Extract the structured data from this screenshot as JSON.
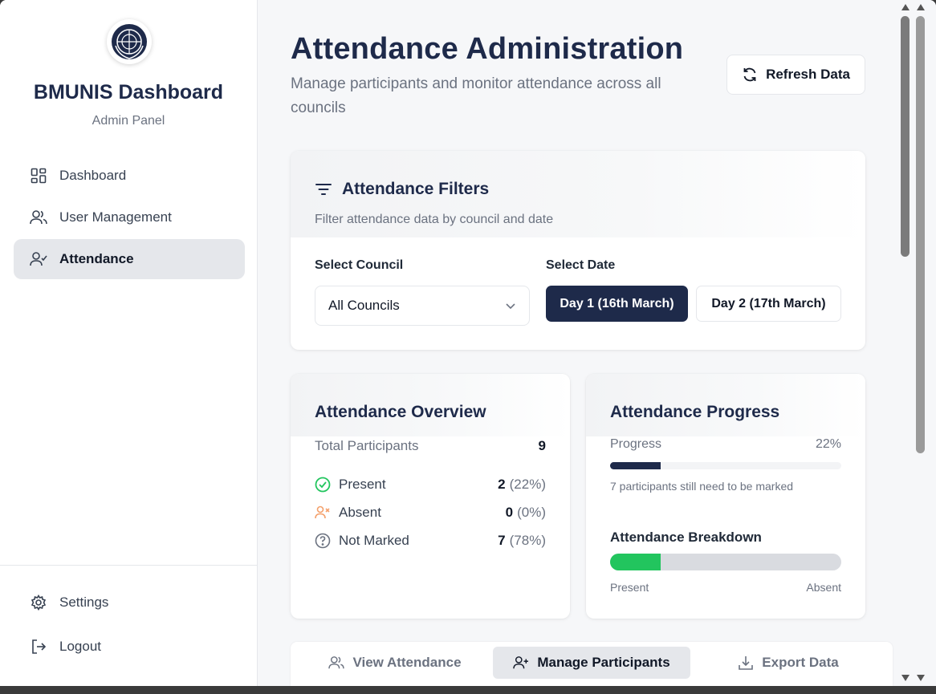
{
  "sidebar": {
    "brand_title": "BMUNIS Dashboard",
    "brand_subtitle": "Admin Panel",
    "nav": [
      {
        "label": "Dashboard",
        "icon": "grid-icon",
        "active": false
      },
      {
        "label": "User Management",
        "icon": "users-icon",
        "active": false
      },
      {
        "label": "Attendance",
        "icon": "user-check-icon",
        "active": true
      }
    ],
    "footer": [
      {
        "label": "Settings",
        "icon": "gear-icon"
      },
      {
        "label": "Logout",
        "icon": "logout-icon"
      }
    ]
  },
  "header": {
    "title": "Attendance Administration",
    "subtitle": "Manage participants and monitor attendance across all councils",
    "refresh_label": "Refresh Data"
  },
  "filters": {
    "title": "Attendance Filters",
    "description": "Filter attendance data by council and date",
    "council_label": "Select Council",
    "council_value": "All Councils",
    "date_label": "Select Date",
    "day1_label": "Day 1 (16th March)",
    "day2_label": "Day 2 (17th March)",
    "selected_day": "Day 1 (16th March)"
  },
  "overview": {
    "title": "Attendance Overview",
    "total_label": "Total Participants",
    "total_value": "9",
    "rows": [
      {
        "label": "Present",
        "count": "2",
        "pct": "(22%)",
        "icon": "check-circle-icon"
      },
      {
        "label": "Absent",
        "count": "0",
        "pct": "(0%)",
        "icon": "user-x-icon"
      },
      {
        "label": "Not Marked",
        "count": "7",
        "pct": "(78%)",
        "icon": "question-circle-icon"
      }
    ]
  },
  "progress": {
    "title": "Attendance Progress",
    "label": "Progress",
    "value_text": "22%",
    "fraction": 0.22,
    "note": "7 participants still need to be marked",
    "breakdown_title": "Attendance Breakdown",
    "present_fraction": 0.22,
    "present_label": "Present",
    "absent_label": "Absent"
  },
  "tabs": [
    {
      "label": "View Attendance",
      "icon": "users-icon",
      "active": false
    },
    {
      "label": "Manage Participants",
      "icon": "user-plus-icon",
      "active": true
    },
    {
      "label": "Export Data",
      "icon": "download-icon",
      "active": false
    }
  ],
  "colors": {
    "navy": "#1e2a4a",
    "present_green": "#22c55e",
    "absent_orange": "#f4a06b"
  }
}
